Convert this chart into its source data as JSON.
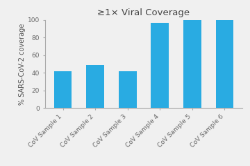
{
  "title": "≥1× Viral Coverage",
  "categories": [
    "CoV Sample 1",
    "CoV Sample 2",
    "CoV Sample 3",
    "CoV Sample 4",
    "CoV Sample 5",
    "CoV Sample 6"
  ],
  "values": [
    42,
    49,
    42,
    97,
    99.5,
    99.8
  ],
  "bar_color": "#29abe2",
  "ylabel": "% SARS-CoV-2 coverage",
  "ylim": [
    0,
    100
  ],
  "yticks": [
    0,
    20,
    40,
    60,
    80,
    100
  ],
  "background_color": "#f0f0f0",
  "title_fontsize": 9.5,
  "ylabel_fontsize": 7,
  "tick_fontsize": 6.5
}
